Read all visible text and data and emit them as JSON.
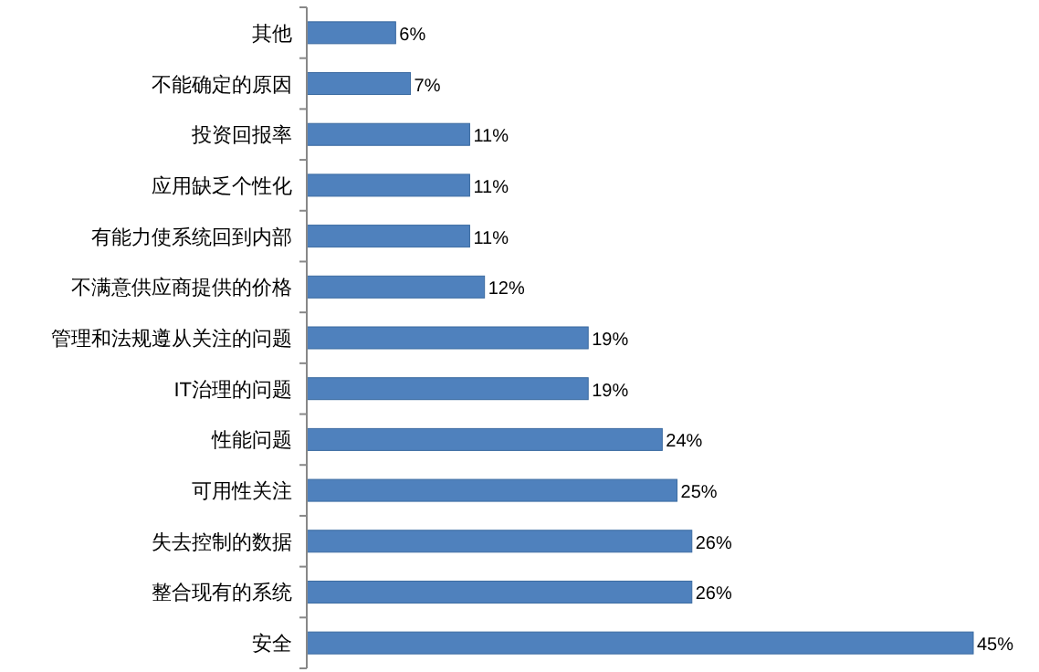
{
  "chart_data": {
    "type": "bar",
    "orientation": "horizontal",
    "categories": [
      "其他",
      "不能确定的原因",
      "投资回报率",
      "应用缺乏个性化",
      "有能力使系统回到内部",
      "不满意供应商提供的价格",
      "管理和法规遵从关注的问题",
      "IT治理的问题",
      "性能问题",
      "可用性关注",
      "失去控制的数据",
      "整合现有的系统",
      "安全"
    ],
    "values": [
      6,
      7,
      11,
      11,
      11,
      12,
      19,
      19,
      24,
      25,
      26,
      26,
      45
    ],
    "value_labels": [
      "6%",
      "7%",
      "11%",
      "11%",
      "11%",
      "12%",
      "19%",
      "19%",
      "24%",
      "25%",
      "26%",
      "26%",
      "45%"
    ],
    "color": "#4f81bd"
  }
}
